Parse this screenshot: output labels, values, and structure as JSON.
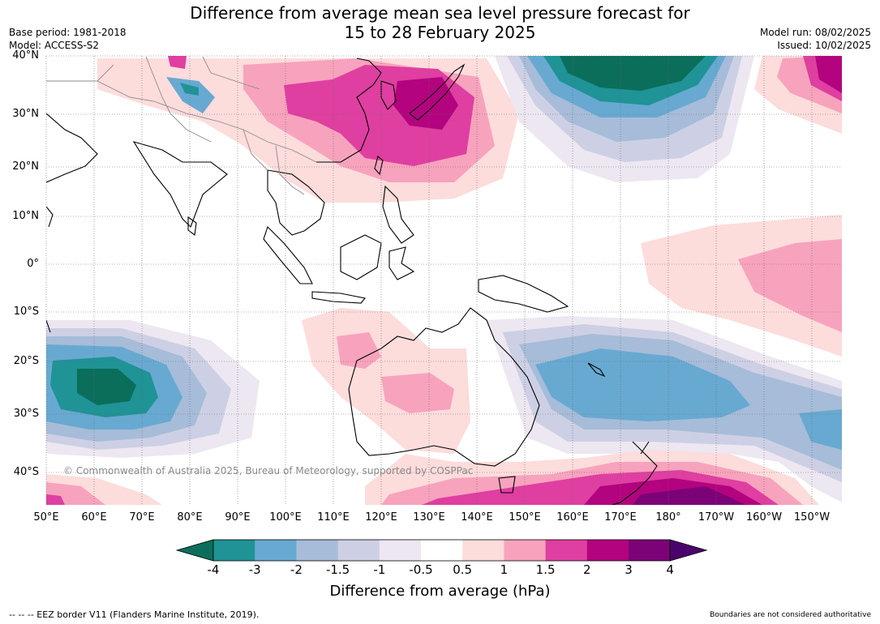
{
  "title_line1": "Difference from average mean sea level pressure forecast for",
  "title_line2": "15 to 28 February 2025",
  "base_period": "Base period: 1981-2018",
  "model": "Model: ACCESS-S2",
  "model_run": "Model run: 08/02/2025",
  "issued": "Issued: 10/02/2025",
  "copyright": "© Commonwealth of Australia 2025, Bureau of Meteorology, supported by COSPPac",
  "lat_labels": [
    "40°N",
    "30°N",
    "20°N",
    "10°N",
    "0°",
    "10°S",
    "20°S",
    "30°S",
    "40°S"
  ],
  "lon_labels": [
    "50°E",
    "60°E",
    "70°E",
    "80°E",
    "90°E",
    "100°E",
    "110°E",
    "120°E",
    "130°E",
    "140°E",
    "150°E",
    "160°E",
    "170°E",
    "180°",
    "170°W",
    "160°W",
    "150°W"
  ],
  "colorbar": {
    "ticks": [
      "-4",
      "-3",
      "-2",
      "-1.5",
      "-1",
      "-0.5",
      "0.5",
      "1",
      "1.5",
      "2",
      "3",
      "4"
    ],
    "colors": [
      "#0b6e5b",
      "#1f9396",
      "#68a9d1",
      "#a6bcd9",
      "#cdd0e4",
      "#ede7f1",
      "#ffffff",
      "#fddcdc",
      "#f7a3bd",
      "#df3fa0",
      "#b3037f",
      "#7b0377",
      "#4a036b"
    ],
    "label": "Difference from average (hPa)"
  },
  "footer_left": "--  --  -- EEZ border V11 (Flanders Marine Institute, 2019).",
  "footer_right": "Boundaries are not considered authoritative"
}
